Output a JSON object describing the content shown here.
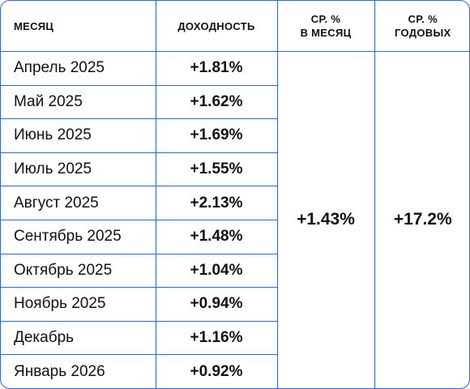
{
  "header": {
    "month": "МЕСЯЦ",
    "yield": "ДОХОДНОСТЬ",
    "avg_month_line1": "СР. %",
    "avg_month_line2": "В МЕСЯЦ",
    "avg_year_line1": "СР. %",
    "avg_year_line2": "ГОДОВЫХ"
  },
  "rows": [
    {
      "month": "Апрель 2025",
      "yield": "+1.81%"
    },
    {
      "month": "Май 2025",
      "yield": "+1.62%"
    },
    {
      "month": "Июнь 2025",
      "yield": "+1.69%"
    },
    {
      "month": "Июль 2025",
      "yield": "+1.55%"
    },
    {
      "month": "Август 2025",
      "yield": "+2.13%"
    },
    {
      "month": "Сентябрь 2025",
      "yield": "+1.48%"
    },
    {
      "month": "Октябрь 2025",
      "yield": "+1.04%"
    },
    {
      "month": "Ноябрь 2025",
      "yield": "+0.94%"
    },
    {
      "month": "Декабрь",
      "yield": "+1.16%"
    },
    {
      "month": "Январь 2026",
      "yield": "+0.92%"
    }
  ],
  "summary": {
    "avg_month": "+1.43%",
    "avg_year": "+17.2%"
  },
  "colors": {
    "border": "#2f63f2",
    "text": "#111111",
    "background": "#ffffff"
  }
}
